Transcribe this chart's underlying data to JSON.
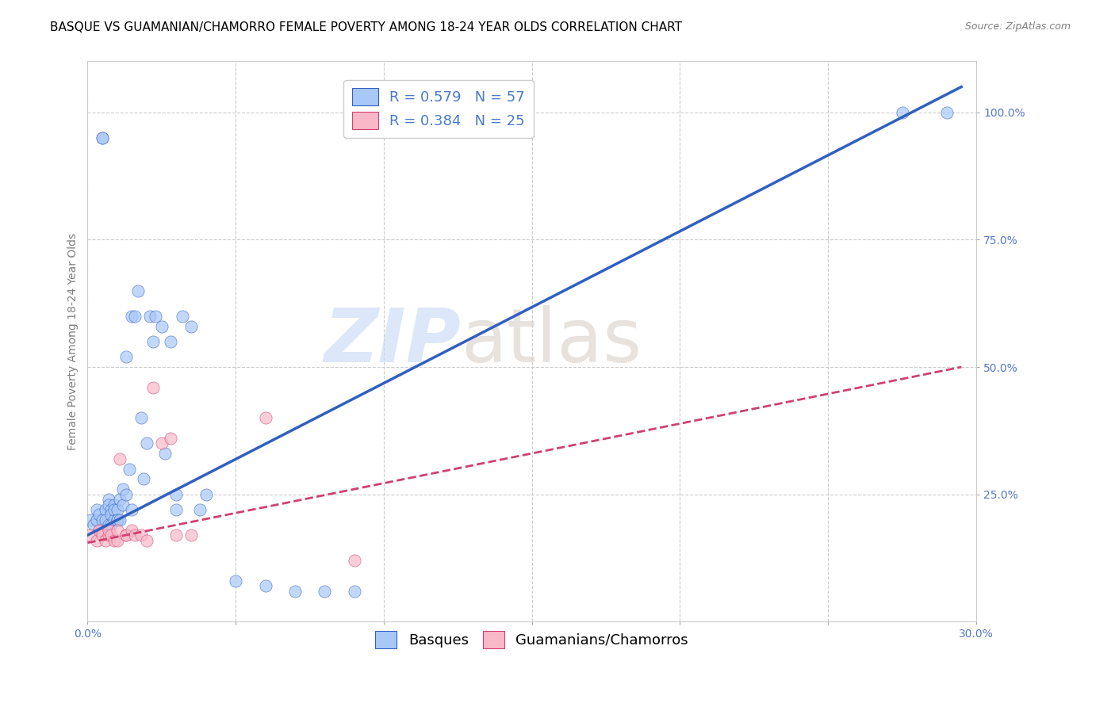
{
  "title": "BASQUE VS GUAMANIAN/CHAMORRO FEMALE POVERTY AMONG 18-24 YEAR OLDS CORRELATION CHART",
  "source": "Source: ZipAtlas.com",
  "ylabel": "Female Poverty Among 18-24 Year Olds",
  "xlim": [
    0.0,
    0.3
  ],
  "ylim": [
    0.0,
    1.1
  ],
  "xticks": [
    0.0,
    0.05,
    0.1,
    0.15,
    0.2,
    0.25,
    0.3
  ],
  "xticklabels": [
    "0.0%",
    "",
    "",
    "",
    "",
    "",
    "30.0%"
  ],
  "yticks": [
    0.25,
    0.5,
    0.75,
    1.0
  ],
  "yticklabels": [
    "25.0%",
    "50.0%",
    "75.0%",
    "100.0%"
  ],
  "blue_color": "#a8c8f8",
  "pink_color": "#f8b8c8",
  "line_blue_color": "#3060c0",
  "line_pink_color": "#d04070",
  "legend_r1": "R = 0.579",
  "legend_n1": "N = 57",
  "legend_r2": "R = 0.384",
  "legend_n2": "N = 25",
  "title_fontsize": 11,
  "source_fontsize": 9,
  "axis_label_fontsize": 10,
  "tick_fontsize": 10,
  "legend_fontsize": 13,
  "marker_size": 120,
  "blue_scatter_x": [
    0.001,
    0.002,
    0.003,
    0.003,
    0.004,
    0.004,
    0.005,
    0.005,
    0.005,
    0.006,
    0.006,
    0.006,
    0.007,
    0.007,
    0.007,
    0.008,
    0.008,
    0.008,
    0.009,
    0.009,
    0.009,
    0.01,
    0.01,
    0.01,
    0.011,
    0.011,
    0.012,
    0.012,
    0.013,
    0.013,
    0.014,
    0.015,
    0.015,
    0.016,
    0.017,
    0.018,
    0.019,
    0.02,
    0.021,
    0.022,
    0.023,
    0.025,
    0.026,
    0.028,
    0.03,
    0.03,
    0.032,
    0.035,
    0.038,
    0.04,
    0.05,
    0.06,
    0.07,
    0.08,
    0.09,
    0.275,
    0.29
  ],
  "blue_scatter_y": [
    0.2,
    0.19,
    0.22,
    0.2,
    0.18,
    0.21,
    0.95,
    0.95,
    0.2,
    0.22,
    0.2,
    0.18,
    0.24,
    0.23,
    0.19,
    0.22,
    0.19,
    0.21,
    0.23,
    0.2,
    0.22,
    0.2,
    0.22,
    0.2,
    0.24,
    0.2,
    0.26,
    0.23,
    0.52,
    0.25,
    0.3,
    0.6,
    0.22,
    0.6,
    0.65,
    0.4,
    0.28,
    0.35,
    0.6,
    0.55,
    0.6,
    0.58,
    0.33,
    0.55,
    0.25,
    0.22,
    0.6,
    0.58,
    0.22,
    0.25,
    0.08,
    0.07,
    0.06,
    0.06,
    0.06,
    1.0,
    1.0
  ],
  "pink_scatter_x": [
    0.001,
    0.003,
    0.004,
    0.005,
    0.006,
    0.007,
    0.007,
    0.008,
    0.009,
    0.01,
    0.01,
    0.011,
    0.013,
    0.013,
    0.015,
    0.016,
    0.018,
    0.02,
    0.022,
    0.025,
    0.028,
    0.03,
    0.035,
    0.06,
    0.09
  ],
  "pink_scatter_y": [
    0.17,
    0.16,
    0.18,
    0.17,
    0.16,
    0.17,
    0.18,
    0.17,
    0.16,
    0.16,
    0.18,
    0.32,
    0.17,
    0.17,
    0.18,
    0.17,
    0.17,
    0.16,
    0.46,
    0.35,
    0.36,
    0.17,
    0.17,
    0.4,
    0.12
  ],
  "blue_line_x0": 0.0,
  "blue_line_y0": 0.17,
  "blue_line_x1": 0.295,
  "blue_line_y1": 1.05,
  "pink_line_x0": 0.0,
  "pink_line_y0": 0.155,
  "pink_line_x1": 0.295,
  "pink_line_y1": 0.5
}
